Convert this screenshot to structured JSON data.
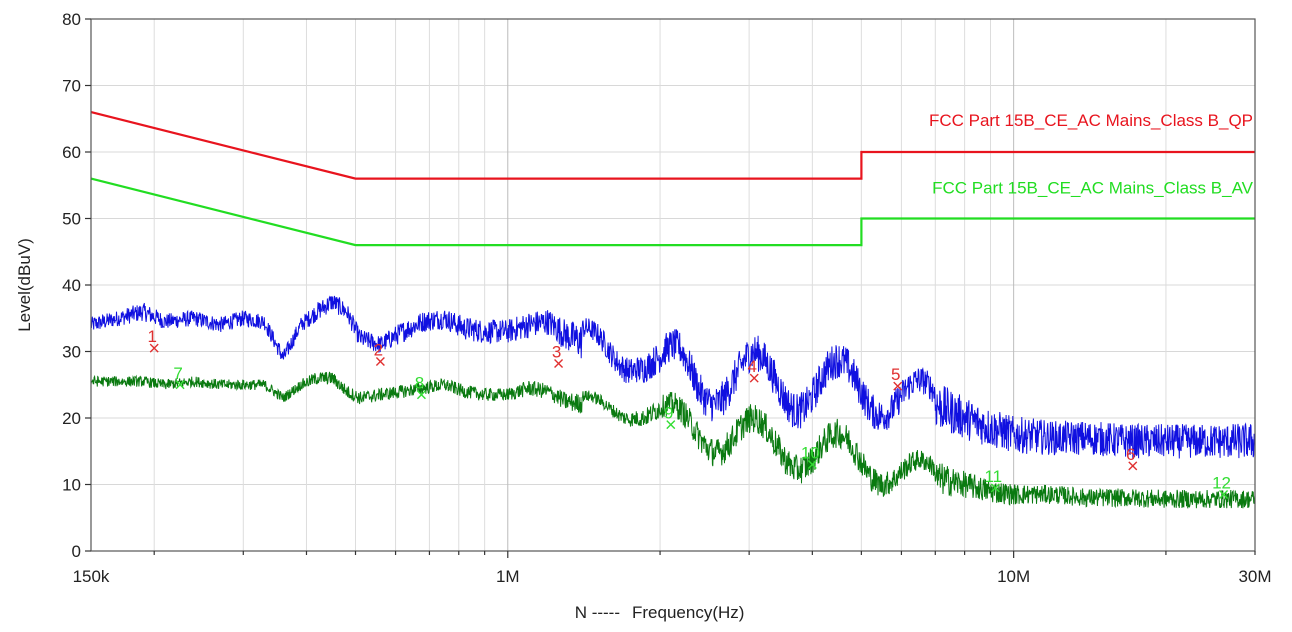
{
  "chart_data": {
    "type": "line",
    "title": "",
    "xlabel": "Frequency(Hz)",
    "xlabel_prefix": "N  -----",
    "ylabel": "Level(dBuV)",
    "x_scale": "log",
    "xlim": [
      150000,
      30000000
    ],
    "ylim": [
      0,
      80
    ],
    "grid": true,
    "x_tick_labels": [
      {
        "value": 150000,
        "label": "150k"
      },
      {
        "value": 1000000,
        "label": "1M"
      },
      {
        "value": 10000000,
        "label": "10M"
      },
      {
        "value": 30000000,
        "label": "30M"
      }
    ],
    "y_ticks": [
      0,
      10,
      20,
      30,
      40,
      50,
      60,
      70,
      80
    ],
    "limit_lines": [
      {
        "name": "FCC Part 15B_CE_AC Mains_Class B_QP",
        "color": "#e8141e",
        "x": [
          150000,
          500000,
          500000,
          5000000,
          5000000,
          30000000
        ],
        "y": [
          66,
          56,
          56,
          56,
          60,
          60
        ]
      },
      {
        "name": "FCC Part 15B_CE_AC Mains_Class B_AV",
        "color": "#22dd22",
        "x": [
          150000,
          500000,
          500000,
          5000000,
          5000000,
          30000000
        ],
        "y": [
          56,
          46,
          46,
          46,
          50,
          50
        ]
      }
    ],
    "series": [
      {
        "key": "peak",
        "color": "#1010e0",
        "x": [
          150000,
          170000,
          190000,
          210000,
          240000,
          270000,
          300000,
          330000,
          360000,
          390000,
          420000,
          450000,
          480000,
          510000,
          560000,
          620000,
          680000,
          750000,
          820000,
          900000,
          1000000,
          1100000,
          1200000,
          1300000,
          1450000,
          1600000,
          1800000,
          2000000,
          2200000,
          2400000,
          2700000,
          3000000,
          3300000,
          3700000,
          4200000,
          4800000,
          5400000,
          6000000,
          7000000,
          8000000,
          9000000,
          10000000,
          12000000,
          14000000,
          17000000,
          20000000,
          24000000,
          30000000
        ],
        "y": [
          34,
          35,
          36,
          34.5,
          35,
          34,
          35,
          34.5,
          29,
          34,
          36,
          37.5,
          36,
          32,
          31,
          33,
          34.5,
          35,
          33.5,
          33,
          33,
          34,
          34.5,
          32.5,
          31,
          30,
          30,
          27,
          27.5,
          26,
          26,
          26,
          25.5,
          25,
          25,
          24.5,
          24,
          23.5,
          22,
          20,
          18.5,
          17.5,
          17,
          17,
          16.5,
          16.5,
          16.5,
          16.5
        ],
        "amp": [
          1.2,
          1.2,
          1.4,
          1.2,
          1.2,
          1.2,
          1.2,
          1.2,
          1.2,
          1.2,
          1.4,
          1.4,
          1.4,
          1.4,
          1.4,
          1.6,
          1.6,
          1.6,
          1.8,
          1.8,
          1.8,
          2.0,
          2.0,
          2.4,
          3.0,
          3.4,
          3.8,
          4.4,
          4.6,
          4.8,
          5.0,
          5.0,
          5.0,
          5.0,
          5.0,
          5.0,
          4.6,
          4.2,
          3.6,
          3.2,
          3.0,
          2.8,
          2.6,
          2.6,
          2.6,
          2.6,
          2.6,
          2.8
        ]
      },
      {
        "key": "average",
        "color": "#0a7a10",
        "x": [
          150000,
          170000,
          190000,
          210000,
          240000,
          270000,
          300000,
          330000,
          360000,
          390000,
          420000,
          450000,
          480000,
          510000,
          560000,
          620000,
          680000,
          750000,
          820000,
          900000,
          1000000,
          1100000,
          1200000,
          1300000,
          1450000,
          1600000,
          1800000,
          2000000,
          2200000,
          2400000,
          2700000,
          3000000,
          3300000,
          3700000,
          4200000,
          4800000,
          5400000,
          6000000,
          7000000,
          8000000,
          9000000,
          10000000,
          12000000,
          14000000,
          17000000,
          20000000,
          24000000,
          30000000
        ],
        "y": [
          25.5,
          25.5,
          25.5,
          25,
          25.5,
          25,
          25,
          25,
          23,
          25,
          26,
          26,
          24,
          23,
          23.5,
          24,
          24.5,
          25,
          24,
          23.5,
          23.5,
          24.5,
          24,
          22.5,
          22,
          21.5,
          21.5,
          20,
          19,
          18.5,
          17.5,
          17,
          16,
          15.5,
          15,
          14,
          13,
          12,
          11,
          10,
          9,
          8.5,
          8.5,
          8,
          8,
          7.8,
          7.8,
          7.8
        ],
        "amp": [
          0.8,
          0.8,
          0.8,
          0.8,
          0.8,
          0.8,
          0.8,
          0.8,
          0.8,
          0.8,
          1.0,
          1.0,
          1.0,
          1.0,
          1.0,
          1.0,
          1.0,
          1.0,
          1.0,
          1.0,
          1.0,
          1.2,
          1.2,
          1.4,
          1.6,
          1.8,
          2.2,
          3.0,
          3.6,
          3.8,
          4.0,
          4.0,
          4.0,
          4.0,
          4.0,
          4.0,
          3.6,
          3.2,
          2.6,
          2.0,
          1.8,
          1.6,
          1.4,
          1.4,
          1.4,
          1.4,
          1.4,
          1.4
        ]
      }
    ],
    "markers": [
      {
        "label": "1",
        "x": 200000,
        "y": 30.5,
        "type": "qp"
      },
      {
        "label": "2",
        "x": 560000,
        "y": 28.5,
        "type": "qp"
      },
      {
        "label": "3",
        "x": 1260000,
        "y": 28.2,
        "type": "qp"
      },
      {
        "label": "4",
        "x": 3070000,
        "y": 26,
        "type": "qp"
      },
      {
        "label": "5",
        "x": 5900000,
        "y": 24.8,
        "type": "qp"
      },
      {
        "label": "6",
        "x": 17200000,
        "y": 12.8,
        "type": "qp"
      },
      {
        "label": "7",
        "x": 225000,
        "y": 25,
        "type": "av"
      },
      {
        "label": "8",
        "x": 675000,
        "y": 23.5,
        "type": "av"
      },
      {
        "label": "9",
        "x": 2100000,
        "y": 19,
        "type": "av"
      },
      {
        "label": "10",
        "x": 4000000,
        "y": 13,
        "type": "av"
      },
      {
        "label": "11",
        "x": 9200000,
        "y": 9.5,
        "type": "av"
      },
      {
        "label": "12",
        "x": 26000000,
        "y": 8.5,
        "type": "av"
      }
    ],
    "marker_colors": {
      "qp": "#e03030",
      "av": "#33dd33"
    }
  }
}
